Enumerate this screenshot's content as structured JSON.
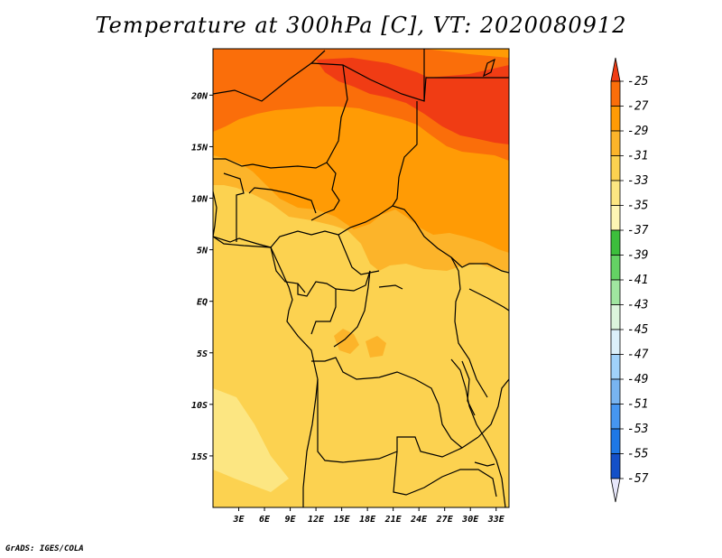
{
  "title": "Temperature at 300hPa [C], VT: 2020080912",
  "footer": "GrADS: IGES/COLA",
  "map": {
    "lon_range": [
      0,
      34.5
    ],
    "lat_range": [
      -20,
      24.5
    ],
    "x_ticks": [
      {
        "value": 3,
        "label": "3E"
      },
      {
        "value": 6,
        "label": "6E"
      },
      {
        "value": 9,
        "label": "9E"
      },
      {
        "value": 12,
        "label": "12E"
      },
      {
        "value": 15,
        "label": "15E"
      },
      {
        "value": 18,
        "label": "18E"
      },
      {
        "value": 21,
        "label": "21E"
      },
      {
        "value": 24,
        "label": "24E"
      },
      {
        "value": 27,
        "label": "27E"
      },
      {
        "value": 30,
        "label": "30E"
      },
      {
        "value": 33,
        "label": "33E"
      }
    ],
    "y_ticks": [
      {
        "value": 20,
        "label": "20N"
      },
      {
        "value": 15,
        "label": "15N"
      },
      {
        "value": 10,
        "label": "10N"
      },
      {
        "value": 5,
        "label": "5N"
      },
      {
        "value": 0,
        "label": "EQ"
      },
      {
        "value": -5,
        "label": "5S"
      },
      {
        "value": -10,
        "label": "10S"
      },
      {
        "value": -15,
        "label": "15S"
      }
    ]
  },
  "colorbar": {
    "labels": [
      "-25",
      "-27",
      "-29",
      "-31",
      "-33",
      "-35",
      "-37",
      "-39",
      "-41",
      "-43",
      "-45",
      "-47",
      "-49",
      "-51",
      "-53",
      "-55",
      "-57"
    ],
    "colors": [
      "#f03c14",
      "#fa6e0a",
      "#ff9b05",
      "#fcb42a",
      "#fcd250",
      "#fce682",
      "#fdf5b4",
      "#3cbe3c",
      "#64d264",
      "#a0e6a0",
      "#dcf5dc",
      "#dcf0fa",
      "#a0d2fa",
      "#78b4f0",
      "#4696f0",
      "#1e78e6",
      "#1450c8",
      "#0a32a0",
      "#0a0a64"
    ]
  }
}
